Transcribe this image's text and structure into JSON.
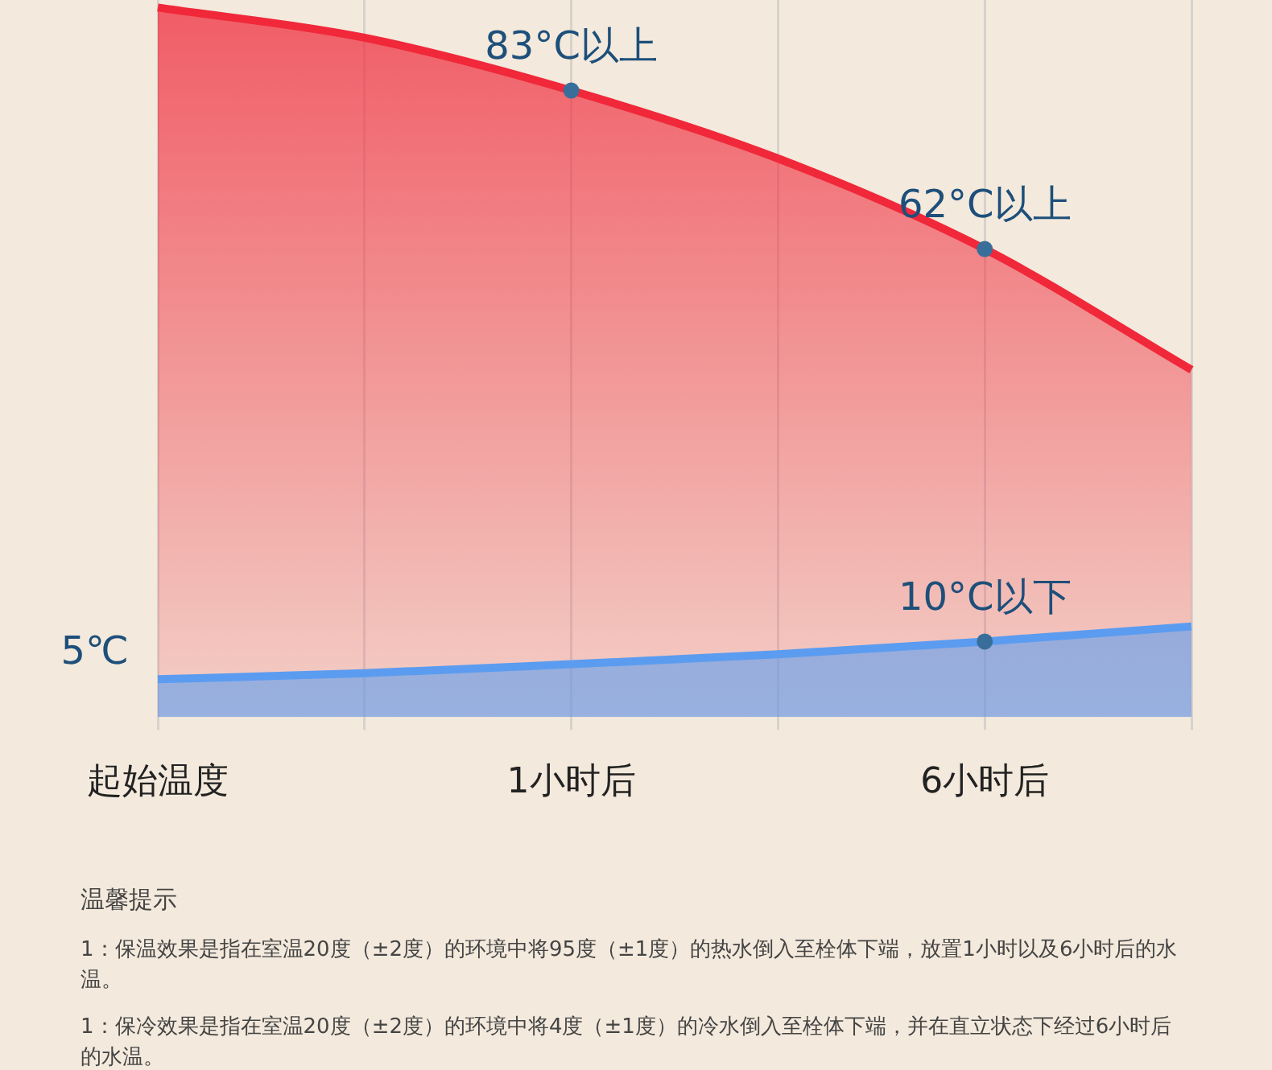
{
  "chart_data": {
    "type": "area",
    "categories": [
      "起始温度",
      null,
      "1小时后",
      null,
      "6小时后",
      null
    ],
    "series": [
      {
        "color": "#f0283a",
        "values": [
          94,
          90,
          83,
          74,
          62,
          46
        ],
        "value_labels": [
          null,
          null,
          "83°C以上",
          null,
          "62°C以上",
          null
        ]
      },
      {
        "color": "#5b9cf0",
        "values": [
          5,
          5.8,
          7,
          8.3,
          10,
          12
        ],
        "value_labels": [
          "5℃",
          null,
          null,
          null,
          "10°C以下",
          null
        ]
      }
    ],
    "grid": "x",
    "legend": false,
    "line_style": "solid",
    "annotations": [
      "温馨提示",
      "1：保温效果是指在室温20度（±2度）的环境中将95度（±1度）的热水倒入至栓体下端，放置1小时以及6小时后的水温。",
      "1：保冷效果是指在室温20度（±2度）的环境中将4度（±1度）的冷水倒入至栓体下端，并在直立状态下经过6小时后的水温。"
    ]
  }
}
